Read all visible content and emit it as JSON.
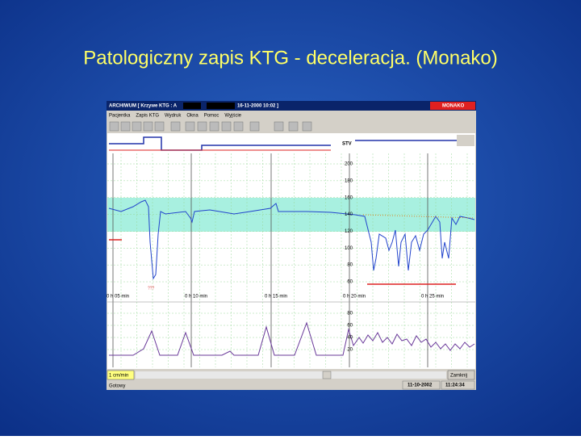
{
  "slide": {
    "title": "Patologiczny zapis KTG - deceleracja. (Monako)"
  },
  "window": {
    "title_start": "ARCHIWUM [ Krzywe KTG : A",
    "title_end": "16-11-2000 10:02 ]",
    "brand": "MONAKO",
    "menu": [
      "Pacjentka",
      "Zapis KTG",
      "Wydruk",
      "Okna",
      "Pomoc",
      "Wyjście"
    ],
    "stv_label": "STV",
    "fhr_ticks": [
      "200",
      "180",
      "160",
      "140",
      "120",
      "100",
      "80",
      "60"
    ],
    "time_labels": [
      "0 h 05 min",
      "0 h 10 min",
      "0 h 15 min",
      "0 h 20 min",
      "0 h 25 min"
    ],
    "toco_ticks": [
      "80",
      "60",
      "40",
      "20"
    ],
    "annotation": "???",
    "speed": "1 cm/min",
    "close": "Zamknij",
    "status": "Gotowy",
    "date": "11-10-2002",
    "time": "11:24:34"
  }
}
